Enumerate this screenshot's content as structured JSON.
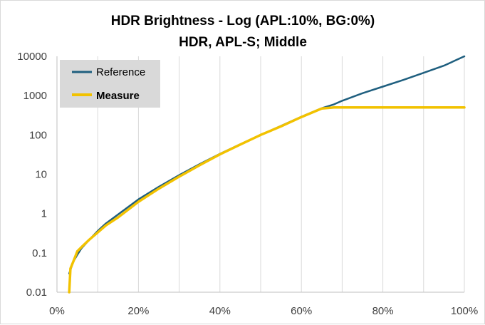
{
  "chart_data": {
    "type": "line",
    "title": "HDR Brightness - Log (APL:10%,  BG:0%)",
    "subtitle": "HDR, APL-S; Middle",
    "xlabel": "",
    "ylabel": "",
    "x_scale": "linear",
    "y_scale": "log",
    "xlim": [
      0,
      100
    ],
    "ylim": [
      0.01,
      10000
    ],
    "x_ticks": [
      0,
      10,
      20,
      30,
      40,
      50,
      60,
      70,
      80,
      90,
      100
    ],
    "x_tick_labels": [
      "0%",
      "",
      "20%",
      "",
      "40%",
      "",
      "60%",
      "",
      "80%",
      "",
      "100%"
    ],
    "y_ticks": [
      0.01,
      0.1,
      1,
      10,
      100,
      1000,
      10000
    ],
    "y_tick_labels": [
      "0.01",
      "0.1",
      "1",
      "10",
      "100",
      "1000",
      "10000"
    ],
    "grid": "vertical",
    "legend_position": "top-left",
    "series": [
      {
        "name": "Reference",
        "color": "#1f5f7f",
        "x": [
          3,
          4,
          5,
          6,
          8,
          10,
          12,
          15,
          20,
          25,
          30,
          35,
          40,
          45,
          50,
          55,
          60,
          65,
          68,
          70,
          75,
          80,
          85,
          90,
          95,
          100
        ],
        "y": [
          0.03,
          0.06,
          0.09,
          0.13,
          0.22,
          0.36,
          0.56,
          0.95,
          2.3,
          4.8,
          9.5,
          18,
          33,
          58,
          100,
          170,
          290,
          480,
          600,
          740,
          1150,
          1700,
          2500,
          3800,
          5800,
          10000
        ]
      },
      {
        "name": "Measure",
        "color": "#f2c200",
        "x": [
          3,
          3.3,
          4,
          5,
          6,
          8,
          10,
          12,
          15,
          20,
          25,
          30,
          35,
          40,
          45,
          50,
          55,
          60,
          65,
          68,
          70,
          80,
          90,
          100
        ],
        "y": [
          0.01,
          0.04,
          0.06,
          0.11,
          0.14,
          0.22,
          0.33,
          0.5,
          0.8,
          2.0,
          4.3,
          8.7,
          17,
          32,
          57,
          100,
          165,
          285,
          470,
          500,
          500,
          500,
          500,
          500
        ]
      }
    ]
  }
}
